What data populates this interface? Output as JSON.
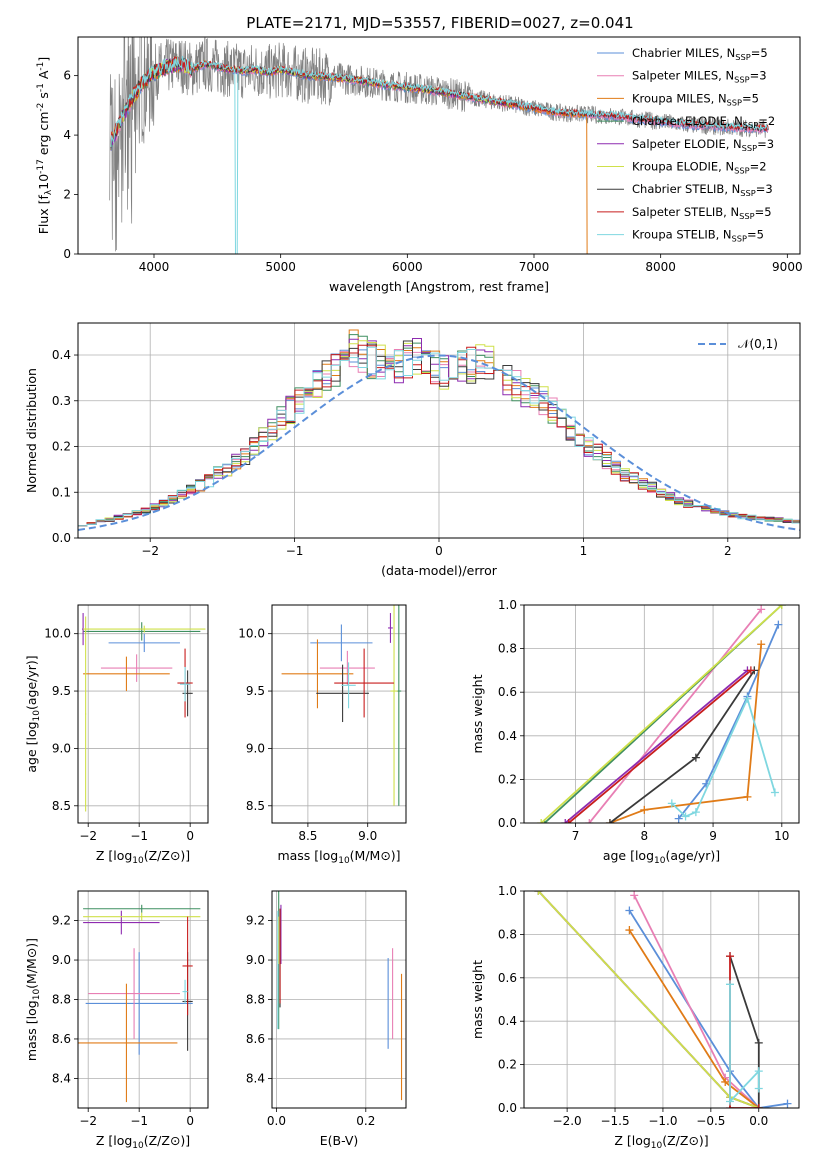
{
  "figure_title": "PLATE=2171, MJD=53557, FIBERID=0027, z=0.041",
  "colors": {
    "chabrier_miles": "#5b8fd9",
    "salpeter_miles": "#e87fb4",
    "kroupa_miles": "#e07b17",
    "chabrier_elodie": "#3f8f60",
    "salpeter_elodie": "#8e2bb0",
    "kroupa_elodie": "#cfe04a",
    "chabrier_stelib": "#3a3a3a",
    "salpeter_stelib": "#c81d1d",
    "kroupa_stelib": "#7fd7e0",
    "data": "#808080",
    "normal": "#5b8fd9"
  },
  "chart_data": [
    {
      "id": "spectrum",
      "type": "line",
      "xlabel": "wavelength [Angstrom, rest frame]",
      "ylabel": "Flux [f$_{\\lambda}$10$^{-17}$ erg cm$^{-2}$ s$^{-1}$ A$^{-1}$]",
      "xlim": [
        3400,
        9100
      ],
      "ylim": [
        0,
        7.3
      ],
      "xticks": [
        4000,
        5000,
        6000,
        7000,
        8000,
        9000
      ],
      "yticks": [
        0,
        2,
        4,
        6
      ],
      "legend_loc": "upper right",
      "legend": [
        "Chabrier MILES, N$_{SSP}$=5",
        "Salpeter MILES, N$_{SSP}$=3",
        "Kroupa MILES, N$_{SSP}$=5",
        "Chabrier ELODIE, N$_{SSP}$=2",
        "Salpeter ELODIE, N$_{SSP}$=3",
        "Kroupa ELODIE, N$_{SSP}$=2",
        "Chabrier STELIB, N$_{SSP}$=3",
        "Salpeter STELIB, N$_{SSP}$=5",
        "Kroupa STELIB, N$_{SSP}$=5"
      ],
      "model_continuum": {
        "x": [
          3650,
          3700,
          3750,
          3800,
          3850,
          3900,
          3950,
          4000,
          4100,
          4200,
          4300,
          4400,
          4500,
          4600,
          4700,
          4800,
          4900,
          5000,
          5200,
          5400,
          5600,
          5800,
          6000,
          6200,
          6400,
          6600,
          6800,
          7000,
          7200,
          7400,
          7600,
          7800,
          8000,
          8200,
          8400,
          8600,
          8800
        ],
        "y": [
          3.7,
          4.1,
          4.6,
          5.0,
          5.4,
          5.7,
          5.9,
          6.1,
          6.3,
          6.4,
          6.2,
          6.4,
          6.3,
          6.2,
          6.15,
          6.2,
          6.1,
          6.2,
          6.0,
          5.95,
          5.85,
          5.7,
          5.6,
          5.5,
          5.35,
          5.2,
          5.05,
          4.9,
          4.75,
          4.7,
          4.65,
          4.55,
          4.45,
          4.35,
          4.3,
          4.25,
          4.2
        ]
      },
      "model_cutoffs": {
        "kroupa_miles": 7420,
        "chabrier_elodie": 6800,
        "salpeter_elodie": 6800,
        "kroupa_elodie": 6800
      }
    },
    {
      "id": "residual_histogram",
      "type": "histogram",
      "xlabel": "(data-model)/error",
      "ylabel": "Normed distribution",
      "xlim": [
        -2.5,
        2.5
      ],
      "ylim": [
        0,
        0.47
      ],
      "xticks": [
        -2,
        -1,
        0,
        1,
        2
      ],
      "yticks": [
        0.0,
        0.1,
        0.2,
        0.3,
        0.4
      ],
      "grid": true,
      "legend": [
        "$\\mathcal{N}(0,1)$"
      ],
      "legend_loc": "upper right",
      "bin_width": 0.1,
      "bin_start": -2.5,
      "density_envelope": [
        0.03,
        0.033,
        0.036,
        0.04,
        0.045,
        0.05,
        0.055,
        0.06,
        0.068,
        0.075,
        0.085,
        0.095,
        0.105,
        0.115,
        0.125,
        0.14,
        0.15,
        0.165,
        0.18,
        0.2,
        0.22,
        0.24,
        0.26,
        0.28,
        0.3,
        0.32,
        0.34,
        0.355,
        0.37,
        0.39,
        0.41,
        0.4,
        0.39,
        0.38,
        0.37,
        0.38,
        0.39,
        0.4,
        0.39,
        0.37,
        0.36,
        0.35,
        0.37,
        0.38,
        0.39,
        0.38,
        0.36,
        0.34,
        0.33,
        0.32,
        0.31,
        0.3,
        0.28,
        0.26,
        0.24,
        0.22,
        0.2,
        0.185,
        0.17,
        0.155,
        0.14,
        0.13,
        0.12,
        0.11,
        0.1,
        0.09,
        0.08,
        0.075,
        0.07,
        0.065,
        0.06,
        0.055,
        0.05,
        0.047,
        0.045,
        0.043,
        0.041,
        0.04,
        0.038,
        0.036
      ]
    },
    {
      "id": "age_vs_metallicity",
      "type": "scatter",
      "xlabel": "Z [log$_{10}$($Z/Z_\\odot$)]",
      "ylabel": "age  [log$_{10}$($age/yr$)]",
      "xlim": [
        -2.2,
        0.35
      ],
      "ylim": [
        8.35,
        10.25
      ],
      "xticks": [
        -2,
        -1,
        0
      ],
      "yticks": [
        8.5,
        9.0,
        9.5,
        10.0
      ],
      "grid": true,
      "points": [
        {
          "model": "chabrier_miles",
          "x": -0.9,
          "xerr": 0.7,
          "y": 9.92,
          "yerr": 0.08
        },
        {
          "model": "salpeter_miles",
          "x": -1.05,
          "xerr": 0.7,
          "y": 9.7,
          "yerr": 0.12
        },
        {
          "model": "kroupa_miles",
          "x": -1.25,
          "xerr": 0.85,
          "y": 9.65,
          "yerr": 0.15
        },
        {
          "model": "chabrier_elodie",
          "x": -0.95,
          "xerr": 1.15,
          "y": 10.02,
          "yerr": 0.08
        },
        {
          "model": "salpeter_elodie",
          "x": -2.1,
          "xerr": 0.02,
          "y": 10.04,
          "yerr": 0.14
        },
        {
          "model": "kroupa_elodie",
          "x": -0.9,
          "xerr": 1.2,
          "y": 10.04,
          "yerr": 0.03
        },
        {
          "model": "chabrier_stelib",
          "x": -0.05,
          "xerr": 0.1,
          "y": 9.48,
          "yerr": 0.2
        },
        {
          "model": "salpeter_stelib",
          "x": -0.1,
          "xerr": 0.15,
          "y": 9.57,
          "yerr": 0.3
        },
        {
          "model": "kroupa_stelib",
          "x": -0.1,
          "xerr": 0.1,
          "y": 9.56,
          "yerr": 0.15
        },
        {
          "model": "kroupa_elodie",
          "x": -2.05,
          "xerr": 0.01,
          "y": 9.3,
          "yerr": 0.85
        }
      ]
    },
    {
      "id": "age_vs_mass",
      "type": "scatter",
      "xlabel": "mass [log$_{10}$($M/M_\\odot$)]",
      "ylabel": "",
      "xlim": [
        8.2,
        9.32
      ],
      "ylim": [
        8.35,
        10.25
      ],
      "xticks": [
        8.5,
        9.0
      ],
      "yticks": [
        8.5,
        9.0,
        9.5,
        10.0
      ],
      "grid": true,
      "points": [
        {
          "model": "chabrier_miles",
          "x": 8.78,
          "xerr": 0.26,
          "y": 9.92,
          "yerr": 0.16
        },
        {
          "model": "salpeter_miles",
          "x": 8.83,
          "xerr": 0.23,
          "y": 9.7,
          "yerr": 0.15
        },
        {
          "model": "kroupa_miles",
          "x": 8.58,
          "xerr": 0.3,
          "y": 9.65,
          "yerr": 0.3
        },
        {
          "model": "chabrier_elodie",
          "x": 9.26,
          "xerr": 0.02,
          "y": 9.5,
          "yerr": 1.0
        },
        {
          "model": "salpeter_elodie",
          "x": 9.19,
          "xerr": 0.02,
          "y": 10.05,
          "yerr": 0.13
        },
        {
          "model": "kroupa_elodie",
          "x": 9.22,
          "xerr": 0.03,
          "y": 9.5,
          "yerr": 1.0
        },
        {
          "model": "chabrier_stelib",
          "x": 8.79,
          "xerr": 0.22,
          "y": 9.48,
          "yerr": 0.25
        },
        {
          "model": "salpeter_stelib",
          "x": 8.97,
          "xerr": 0.25,
          "y": 9.57,
          "yerr": 0.3
        },
        {
          "model": "kroupa_stelib",
          "x": 8.84,
          "xerr": 0.06,
          "y": 9.55,
          "yerr": 0.2
        }
      ]
    },
    {
      "id": "mass_weight_vs_age",
      "type": "line",
      "xlabel": "age  [log$_{10}$($age/yr$)]",
      "ylabel": "mass weight",
      "xlim": [
        6.25,
        10.25
      ],
      "ylim": [
        0,
        1.0
      ],
      "xticks": [
        7,
        8,
        9,
        10
      ],
      "yticks": [
        0.0,
        0.2,
        0.4,
        0.6,
        0.8,
        1.0
      ],
      "grid": true,
      "series": [
        {
          "model": "chabrier_miles",
          "x": [
            8.5,
            8.9,
            9.5,
            9.95
          ],
          "y": [
            0.02,
            0.18,
            0.58,
            0.91
          ]
        },
        {
          "model": "salpeter_miles",
          "x": [
            7.2,
            9.7
          ],
          "y": [
            0.0,
            0.98
          ]
        },
        {
          "model": "kroupa_miles",
          "x": [
            7.5,
            8.0,
            9.5,
            9.7
          ],
          "y": [
            0.0,
            0.06,
            0.12,
            0.82
          ]
        },
        {
          "model": "chabrier_elodie",
          "x": [
            6.55,
            10.0
          ],
          "y": [
            0.0,
            1.0
          ]
        },
        {
          "model": "salpeter_elodie",
          "x": [
            6.85,
            9.5
          ],
          "y": [
            0.0,
            0.7
          ]
        },
        {
          "model": "kroupa_elodie",
          "x": [
            6.5,
            10.0
          ],
          "y": [
            0.0,
            1.0
          ]
        },
        {
          "model": "chabrier_stelib",
          "x": [
            7.5,
            8.75,
            9.6
          ],
          "y": [
            0.0,
            0.3,
            0.7
          ]
        },
        {
          "model": "salpeter_stelib",
          "x": [
            6.9,
            9.55
          ],
          "y": [
            0.0,
            0.7
          ]
        },
        {
          "model": "kroupa_stelib",
          "x": [
            8.4,
            8.6,
            8.75,
            9.5,
            9.9
          ],
          "y": [
            0.09,
            0.03,
            0.05,
            0.57,
            0.14
          ]
        }
      ]
    },
    {
      "id": "mass_vs_metallicity",
      "type": "scatter",
      "xlabel": "Z [log$_{10}$($Z/Z_\\odot$)]",
      "ylabel": "mass [log$_{10}$($M/M_\\odot$)]",
      "xlim": [
        -2.2,
        0.35
      ],
      "ylim": [
        8.25,
        9.35
      ],
      "xticks": [
        -2,
        -1,
        0
      ],
      "yticks": [
        8.4,
        8.6,
        8.8,
        9.0,
        9.2
      ],
      "grid": true,
      "points": [
        {
          "model": "chabrier_miles",
          "x": -1.0,
          "xerr": 1.05,
          "y": 8.78,
          "yerr": 0.26
        },
        {
          "model": "salpeter_miles",
          "x": -1.1,
          "xerr": 0.9,
          "y": 8.83,
          "yerr": 0.23
        },
        {
          "model": "kroupa_miles",
          "x": -1.25,
          "xerr": 1.0,
          "y": 8.58,
          "yerr": 0.3
        },
        {
          "model": "chabrier_elodie",
          "x": -0.95,
          "xerr": 1.15,
          "y": 9.26,
          "yerr": 0.02
        },
        {
          "model": "salpeter_elodie",
          "x": -1.35,
          "xerr": 0.75,
          "y": 9.19,
          "yerr": 0.06
        },
        {
          "model": "kroupa_elodie",
          "x": -0.95,
          "xerr": 1.15,
          "y": 9.22,
          "yerr": 0.02
        },
        {
          "model": "chabrier_stelib",
          "x": -0.05,
          "xerr": 0.1,
          "y": 8.79,
          "yerr": 0.25
        },
        {
          "model": "salpeter_stelib",
          "x": -0.05,
          "xerr": 0.1,
          "y": 8.97,
          "yerr": 0.25
        },
        {
          "model": "kroupa_stelib",
          "x": -0.1,
          "xerr": 0.05,
          "y": 8.84,
          "yerr": 0.06
        }
      ]
    },
    {
      "id": "mass_vs_ebv",
      "type": "scatter",
      "xlabel": "E(B-V)",
      "ylabel": "",
      "xlim": [
        -0.01,
        0.29
      ],
      "ylim": [
        8.25,
        9.35
      ],
      "xticks": [
        0.0,
        0.2
      ],
      "yticks": [
        8.4,
        8.6,
        8.8,
        9.0,
        9.2
      ],
      "grid": true,
      "points": [
        {
          "model": "chabrier_miles",
          "x": 0.25,
          "y": 8.78,
          "yerr": 0.23
        },
        {
          "model": "salpeter_miles",
          "x": 0.26,
          "y": 8.83,
          "yerr": 0.23
        },
        {
          "model": "kroupa_miles",
          "x": 0.28,
          "y": 8.61,
          "yerr": 0.32
        },
        {
          "model": "chabrier_elodie",
          "x": 0.005,
          "y": 9.0,
          "yerr": 0.35
        },
        {
          "model": "salpeter_elodie",
          "x": 0.01,
          "y": 9.13,
          "yerr": 0.15
        },
        {
          "model": "kroupa_elodie",
          "x": 0.005,
          "y": 9.1,
          "yerr": 0.12
        },
        {
          "model": "chabrier_stelib",
          "x": 0.008,
          "y": 9.01,
          "yerr": 0.25
        },
        {
          "model": "salpeter_stelib",
          "x": 0.008,
          "y": 9.02,
          "yerr": 0.24
        },
        {
          "model": "kroupa_stelib",
          "x": 0.003,
          "y": 8.95,
          "yerr": 0.3
        }
      ]
    },
    {
      "id": "mass_weight_vs_metallicity",
      "type": "line",
      "xlabel": "Z [log$_{10}$($Z/Z_\\odot$)]",
      "ylabel": "mass weight",
      "xlim": [
        -2.45,
        0.42
      ],
      "ylim": [
        0,
        1.0
      ],
      "xticks": [
        -2.0,
        -1.5,
        -1.0,
        -0.5,
        0.0
      ],
      "yticks": [
        0.0,
        0.2,
        0.4,
        0.6,
        0.8,
        1.0
      ],
      "grid": true,
      "series": [
        {
          "model": "chabrier_miles",
          "x": [
            -1.35,
            -0.3,
            0.0,
            0.3
          ],
          "y": [
            0.91,
            0.17,
            0.0,
            0.02
          ]
        },
        {
          "model": "salpeter_miles",
          "x": [
            -1.3,
            -0.35,
            0.0
          ],
          "y": [
            0.98,
            0.14,
            0.0
          ]
        },
        {
          "model": "kroupa_miles",
          "x": [
            -1.35,
            -0.35,
            0.0
          ],
          "y": [
            0.82,
            0.12,
            0.0
          ]
        },
        {
          "model": "chabrier_elodie",
          "x": [
            -2.3,
            -0.3,
            0.0
          ],
          "y": [
            1.0,
            0.05,
            0.0
          ]
        },
        {
          "model": "salpeter_elodie",
          "x": [
            -2.3,
            -0.3,
            0.0
          ],
          "y": [
            1.0,
            0.05,
            0.0
          ]
        },
        {
          "model": "kroupa_elodie",
          "x": [
            -2.3,
            -0.3,
            0.0
          ],
          "y": [
            1.0,
            0.05,
            0.0
          ]
        },
        {
          "model": "chabrier_stelib",
          "x": [
            -0.3,
            0.0,
            0.0
          ],
          "y": [
            0.7,
            0.3,
            0.0
          ]
        },
        {
          "model": "salpeter_stelib",
          "x": [
            -0.3,
            -0.3,
            0.0
          ],
          "y": [
            0.7,
            0.0,
            0.0
          ]
        },
        {
          "model": "kroupa_stelib",
          "x": [
            -0.3,
            -0.3,
            0.0,
            0.0
          ],
          "y": [
            0.57,
            0.03,
            0.17,
            0.09
          ]
        }
      ]
    }
  ]
}
